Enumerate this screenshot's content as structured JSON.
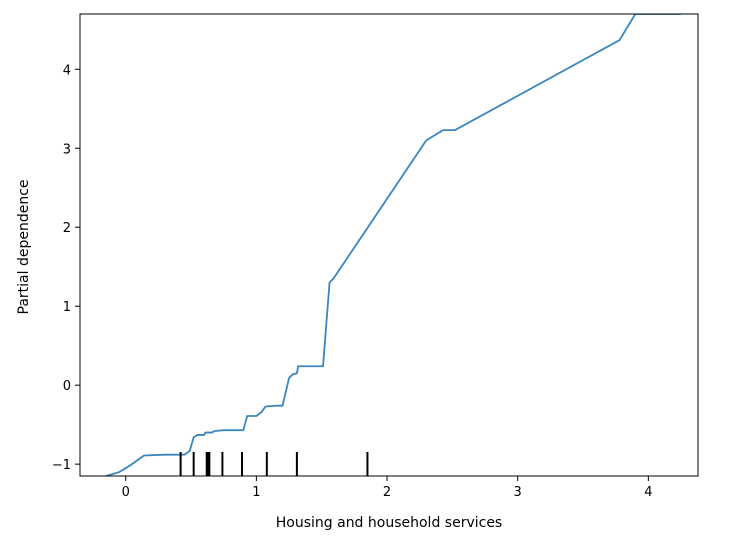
{
  "chart_data": {
    "type": "line",
    "title": "",
    "xlabel": "Housing and household services",
    "ylabel": "Partial dependence",
    "xlim": [
      -0.35,
      4.38
    ],
    "ylim": [
      -1.15,
      4.7
    ],
    "x_ticks": [
      {
        "value": 0,
        "label": "0"
      },
      {
        "value": 1,
        "label": "1"
      },
      {
        "value": 2,
        "label": "2"
      },
      {
        "value": 3,
        "label": "3"
      },
      {
        "value": 4,
        "label": "4"
      }
    ],
    "y_ticks": [
      {
        "value": -1,
        "label": "−1"
      },
      {
        "value": 0,
        "label": "0"
      },
      {
        "value": 1,
        "label": "1"
      },
      {
        "value": 2,
        "label": "2"
      },
      {
        "value": 3,
        "label": "3"
      },
      {
        "value": 4,
        "label": "4"
      }
    ],
    "grid": false,
    "legend": "none",
    "series": [
      {
        "color": "#3a86bd",
        "points": [
          [
            -0.15,
            -1.15
          ],
          [
            -0.05,
            -1.1
          ],
          [
            0.03,
            -1.02
          ],
          [
            0.14,
            -0.89
          ],
          [
            0.3,
            -0.88
          ],
          [
            0.45,
            -0.88
          ],
          [
            0.49,
            -0.83
          ],
          [
            0.52,
            -0.66
          ],
          [
            0.55,
            -0.63
          ],
          [
            0.6,
            -0.63
          ],
          [
            0.61,
            -0.6
          ],
          [
            0.66,
            -0.6
          ],
          [
            0.68,
            -0.58
          ],
          [
            0.75,
            -0.57
          ],
          [
            0.9,
            -0.57
          ],
          [
            0.93,
            -0.39
          ],
          [
            1.0,
            -0.39
          ],
          [
            1.04,
            -0.34
          ],
          [
            1.07,
            -0.27
          ],
          [
            1.15,
            -0.26
          ],
          [
            1.2,
            -0.26
          ],
          [
            1.25,
            0.09
          ],
          [
            1.28,
            0.14
          ],
          [
            1.31,
            0.15
          ],
          [
            1.32,
            0.24
          ],
          [
            1.51,
            0.24
          ],
          [
            1.56,
            1.3
          ],
          [
            1.59,
            1.35
          ],
          [
            2.3,
            3.1
          ],
          [
            2.38,
            3.18
          ],
          [
            2.43,
            3.23
          ],
          [
            2.52,
            3.23
          ],
          [
            3.78,
            4.37
          ],
          [
            3.9,
            4.7
          ],
          [
            4.25,
            4.7
          ]
        ]
      }
    ],
    "rug_ticks_x": [
      0.42,
      0.52,
      0.62,
      0.63,
      0.64,
      0.74,
      0.89,
      1.08,
      1.31,
      1.85
    ],
    "colors": {
      "line": "#3a86bd",
      "axes": "#000000",
      "rug": "#000000",
      "background": "#ffffff"
    }
  }
}
